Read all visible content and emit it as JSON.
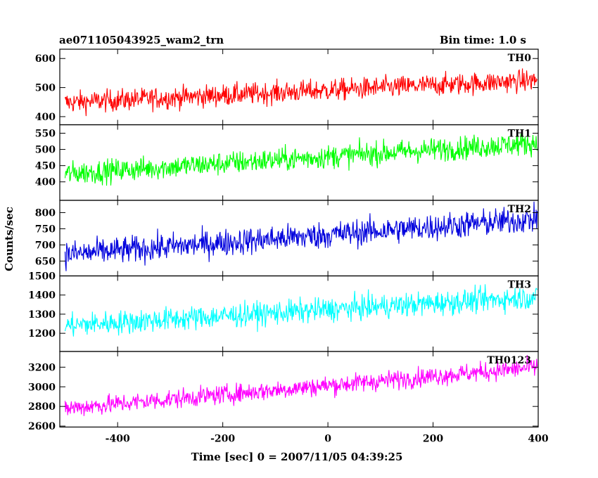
{
  "header": {
    "obs_id": "ae071105043925_wam2_trn",
    "bin_time": "Bin time: 1.0 s"
  },
  "ylabel": "Counts/sec",
  "xlabel": "Time [sec] 0 = 2007/11/05 04:39:25",
  "chart_data": {
    "type": "line",
    "title": "ae071105043925_wam2_trn",
    "subtitle": "Bin time: 1.0 s",
    "xlabel": "Time [sec] 0 = 2007/11/05 04:39:25",
    "ylabel": "Counts/sec",
    "xlim": [
      -510,
      400
    ],
    "xticks": [
      -400,
      -200,
      0,
      200,
      400
    ],
    "x_step": 1.0,
    "grid": false,
    "panels": [
      {
        "name": "TH0",
        "color": "#ff0000",
        "ylim": [
          372,
          632
        ],
        "yticks": [
          400,
          500,
          600
        ],
        "x_range": [
          -500,
          398
        ],
        "trend_start": 448,
        "trend_end": 525,
        "noise": 27
      },
      {
        "name": "TH1",
        "color": "#00ff00",
        "ylim": [
          343,
          576
        ],
        "yticks": [
          400,
          450,
          500,
          550
        ],
        "x_range": [
          -500,
          398
        ],
        "trend_start": 425,
        "trend_end": 520,
        "noise": 26
      },
      {
        "name": "TH2",
        "color": "#0000dd",
        "ylim": [
          604,
          838
        ],
        "yticks": [
          650,
          700,
          750,
          800
        ],
        "x_range": [
          -500,
          398
        ],
        "trend_start": 670,
        "trend_end": 780,
        "noise": 30
      },
      {
        "name": "TH3",
        "color": "#00ffff",
        "ylim": [
          1105,
          1500
        ],
        "yticks": [
          1200,
          1300,
          1400,
          1500
        ],
        "x_range": [
          -500,
          398
        ],
        "trend_start": 1240,
        "trend_end": 1390,
        "noise": 45
      },
      {
        "name": "TH0123",
        "color": "#ff00ff",
        "ylim": [
          2590,
          3360
        ],
        "yticks": [
          2600,
          2800,
          3000,
          3200
        ],
        "x_range": [
          -500,
          398
        ],
        "trend_start": 2780,
        "trend_end": 3200,
        "noise": 70
      }
    ]
  }
}
